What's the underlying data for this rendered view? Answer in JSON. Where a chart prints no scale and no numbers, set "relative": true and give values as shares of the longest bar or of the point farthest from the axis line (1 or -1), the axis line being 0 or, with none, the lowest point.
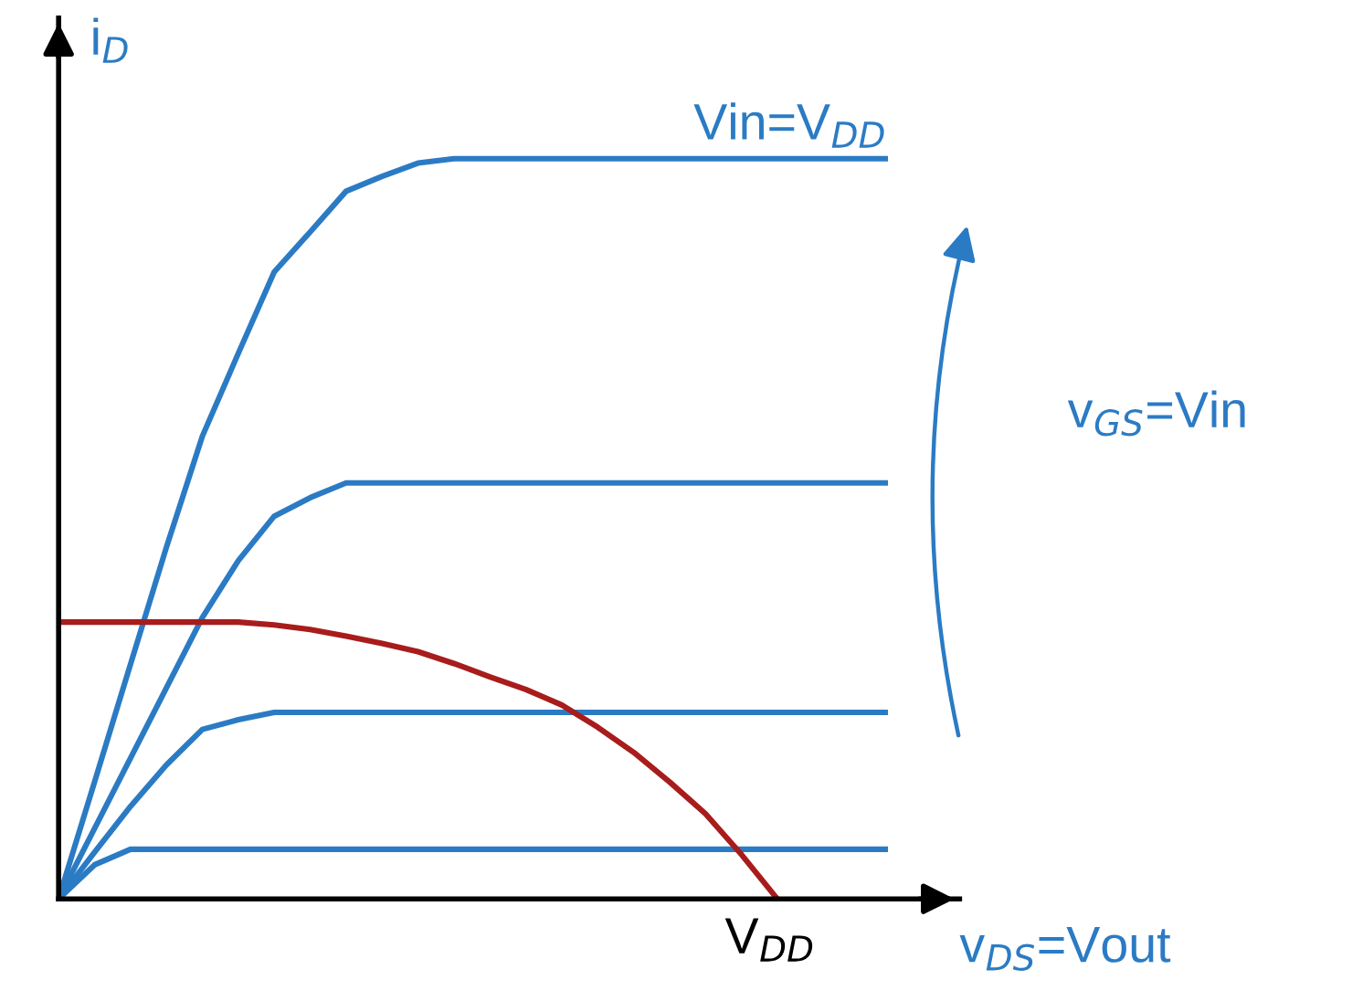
{
  "chart_data": {
    "type": "line",
    "relative": true,
    "xlabel": "v$_{DS}$=Vout",
    "ylabel": "i$_{D}$",
    "marker": "none",
    "line_style": "solid",
    "categories": [
      null,
      null,
      null,
      null,
      null,
      null,
      null,
      null,
      null,
      null,
      null,
      null,
      null,
      null,
      null,
      null,
      null,
      null,
      null,
      null,
      null,
      null,
      null,
      null
    ],
    "series": [
      {
        "color": "#2b7bc4",
        "values": [
          0,
          0.158,
          0.317,
          0.475,
          0.625,
          0.737,
          0.847,
          0.901,
          0.956,
          0.976,
          0.994,
          1.0,
          1.0,
          1.0,
          1.0,
          1.0,
          1.0,
          1.0,
          1.0,
          1.0,
          1.0,
          1.0,
          1.0,
          1.0
        ]
      },
      {
        "color": "#2b7bc4",
        "values": [
          0,
          0.095,
          0.19,
          0.285,
          0.38,
          0.457,
          0.517,
          0.542,
          0.562,
          0.562,
          0.562,
          0.562,
          0.562,
          0.562,
          0.562,
          0.562,
          0.562,
          0.562,
          0.562,
          0.562,
          0.562,
          0.562,
          0.562,
          0.562
        ]
      },
      {
        "color": "#2b7bc4",
        "values": [
          0,
          0.063,
          0.125,
          0.181,
          0.229,
          0.242,
          0.252,
          0.252,
          0.252,
          0.252,
          0.252,
          0.252,
          0.252,
          0.252,
          0.252,
          0.252,
          0.252,
          0.252,
          0.252,
          0.252,
          0.252,
          0.252,
          0.252,
          0.252
        ]
      },
      {
        "color": "#2b7bc4",
        "values": [
          0,
          0.046,
          0.067,
          0.067,
          0.067,
          0.067,
          0.067,
          0.067,
          0.067,
          0.067,
          0.067,
          0.067,
          0.067,
          0.067,
          0.067,
          0.067,
          0.067,
          0.067,
          0.067,
          0.067,
          0.067,
          0.067,
          0.067,
          0.067
        ]
      },
      {
        "color": "#a81c1c",
        "values": [
          0.374,
          0.374,
          0.374,
          0.374,
          0.374,
          0.374,
          0.37,
          0.364,
          0.355,
          0.345,
          0.334,
          0.318,
          0.3,
          0.283,
          0.262,
          0.232,
          0.198,
          0.158,
          0.115,
          0.06,
          0,
          null,
          null,
          null
        ]
      }
    ],
    "annotations": [
      "Vin=V$_{DD}$",
      "V$_{DD}$",
      "v$_{GS}$=Vin"
    ]
  }
}
